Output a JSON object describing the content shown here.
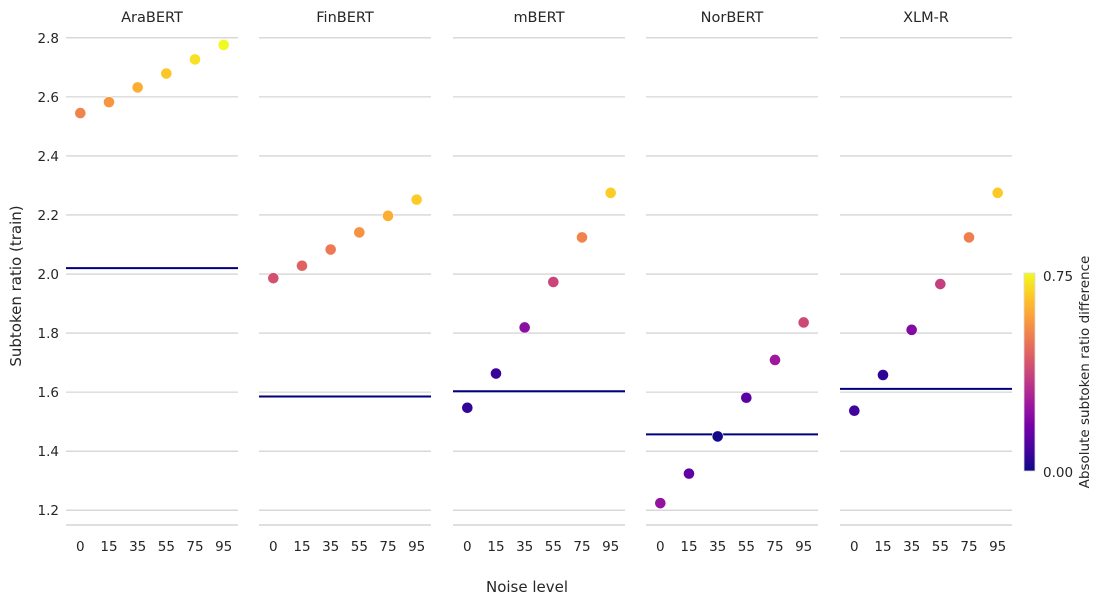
{
  "chart_data": {
    "type": "scatter",
    "xlabel": "Noise level",
    "ylabel": "Subtoken ratio (train)",
    "ylim": [
      1.15,
      2.84
    ],
    "yticks": [
      1.2,
      1.4,
      1.6,
      1.8,
      2.0,
      2.2,
      2.4,
      2.6,
      2.8
    ],
    "categories": [
      "0",
      "15",
      "35",
      "55",
      "75",
      "95"
    ],
    "grid": "horizontal",
    "colormap": "plasma",
    "baseline_color": "#00007f",
    "colorbar": {
      "label": "Absolute subtoken ratio difference",
      "min": 0.0,
      "max": 0.75,
      "ticks": [
        "0.00",
        "0.75"
      ],
      "colors": [
        "#0d0887",
        "#46039f",
        "#7201a8",
        "#9c179e",
        "#bd3786",
        "#d8576b",
        "#ed7953",
        "#fb9f3a",
        "#fdca26",
        "#f0f921"
      ]
    },
    "panels": [
      {
        "title": "AraBERT",
        "baseline": 2.02,
        "values": [
          2.545,
          2.582,
          2.632,
          2.679,
          2.727,
          2.776
        ]
      },
      {
        "title": "FinBERT",
        "baseline": 1.585,
        "values": [
          1.986,
          2.028,
          2.083,
          2.141,
          2.197,
          2.252
        ]
      },
      {
        "title": "mBERT",
        "baseline": 1.603,
        "values": [
          1.547,
          1.663,
          1.819,
          1.973,
          2.124,
          2.275
        ]
      },
      {
        "title": "NorBERT",
        "baseline": 1.457,
        "values": [
          1.224,
          1.324,
          1.45,
          1.581,
          1.709,
          1.836
        ]
      },
      {
        "title": "XLM-R",
        "baseline": 1.611,
        "values": [
          1.537,
          1.658,
          1.811,
          1.966,
          2.124,
          2.275
        ]
      }
    ]
  }
}
